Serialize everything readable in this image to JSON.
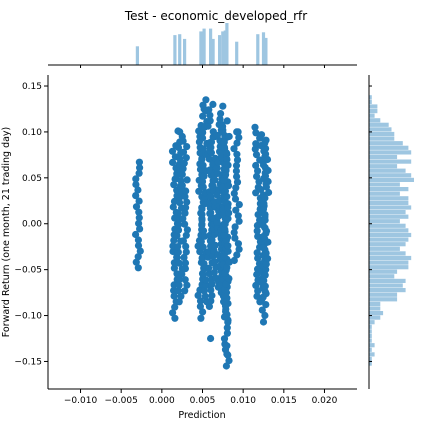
{
  "chart_data": {
    "type": "scatter",
    "title": "Test - economic_developed_rfr",
    "xlabel": "Prediction",
    "ylabel": "Forward Return (one month, 21 trading day)",
    "xlim": [
      -0.014,
      0.024
    ],
    "ylim": [
      -0.18,
      0.162
    ],
    "x_ticks": [
      -0.01,
      -0.005,
      0.0,
      0.005,
      0.01,
      0.015,
      0.02
    ],
    "x_tick_labels": [
      "−0.010",
      "−0.005",
      "0.000",
      "0.005",
      "0.010",
      "0.015",
      "0.020"
    ],
    "y_ticks": [
      -0.15,
      -0.1,
      -0.05,
      0.0,
      0.05,
      0.1,
      0.15
    ],
    "y_tick_labels": [
      "−0.15",
      "−0.10",
      "−0.05",
      "0.00",
      "0.05",
      "0.10",
      "0.15"
    ],
    "grid": false,
    "color": "#1f77b4",
    "marginal_color": "#9ec6e1",
    "clusters": [
      {
        "x": -0.003,
        "ymin": -0.048,
        "ymax": 0.067
      },
      {
        "x": 0.0016,
        "ymin": -0.097,
        "ymax": 0.085
      },
      {
        "x": 0.0022,
        "ymin": -0.085,
        "ymax": 0.101
      },
      {
        "x": 0.0028,
        "ymin": -0.073,
        "ymax": 0.09
      },
      {
        "x": 0.0048,
        "ymin": -0.096,
        "ymax": 0.107
      },
      {
        "x": 0.0052,
        "ymin": -0.085,
        "ymax": 0.135
      },
      {
        "x": 0.006,
        "ymin": -0.09,
        "ymax": 0.13
      },
      {
        "x": 0.0063,
        "ymin": -0.065,
        "ymax": 0.095
      },
      {
        "x": 0.0071,
        "ymin": -0.075,
        "ymax": 0.108
      },
      {
        "x": 0.0075,
        "ymin": -0.085,
        "ymax": 0.12
      },
      {
        "x": 0.0078,
        "ymin": -0.105,
        "ymax": 0.112
      },
      {
        "x": 0.008,
        "ymin": -0.155,
        "ymax": 0.095
      },
      {
        "x": 0.0092,
        "ymin": -0.04,
        "ymax": 0.1
      },
      {
        "x": 0.0118,
        "ymin": -0.085,
        "ymax": 0.105
      },
      {
        "x": 0.0125,
        "ymin": -0.1,
        "ymax": 0.097
      },
      {
        "x": 0.0128,
        "ymin": -0.08,
        "ymax": 0.088
      }
    ],
    "outliers": [
      {
        "x": 0.008,
        "y": -0.133
      },
      {
        "x": 0.008,
        "y": -0.142
      },
      {
        "x": 0.006,
        "y": -0.125
      },
      {
        "x": 0.0048,
        "y": -0.103
      },
      {
        "x": 0.0016,
        "y": -0.103
      },
      {
        "x": 0.0125,
        "y": -0.107
      },
      {
        "x": 0.0052,
        "y": 0.125
      },
      {
        "x": 0.0075,
        "y": 0.128
      },
      {
        "x": 0.0092,
        "y": 0.1
      },
      {
        "x": 0.0022,
        "y": 0.1
      }
    ]
  }
}
